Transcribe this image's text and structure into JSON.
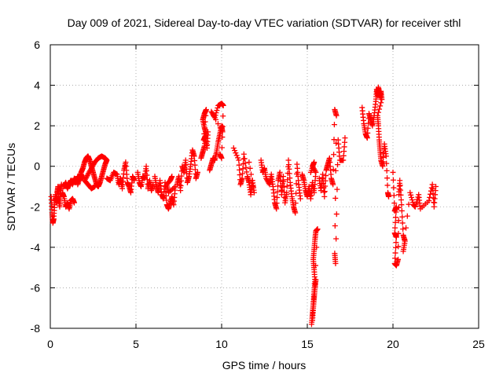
{
  "chart_data": {
    "type": "scatter",
    "title": "Day 009 of 2021, Sidereal Day-to-day VTEC variation (SDTVAR) for receiver sthl",
    "xlabel": "GPS time / hours",
    "ylabel": "SDTVAR / TECUs",
    "xlim": [
      0,
      25
    ],
    "ylim": [
      -8,
      6
    ],
    "x_ticks": [
      0,
      5,
      10,
      15,
      20,
      25
    ],
    "y_ticks": [
      -8,
      -6,
      -4,
      -2,
      0,
      2,
      4,
      6
    ],
    "grid": true,
    "marker": "+",
    "series": [
      {
        "name": "SDTVAR",
        "color": "#ff0000",
        "segments": [
          [
            [
              0.05,
              -1.5
            ],
            [
              0.1,
              -2.3
            ],
            [
              0.15,
              -2.8
            ],
            [
              0.2,
              -2.6
            ],
            [
              0.25,
              -1.9
            ],
            [
              0.3,
              -1.4
            ],
            [
              0.35,
              -1.8
            ],
            [
              0.4,
              -1.3
            ],
            [
              0.45,
              -1.0
            ],
            [
              0.5,
              -1.6
            ],
            [
              0.55,
              -2.0
            ],
            [
              0.6,
              -1.2
            ],
            [
              0.65,
              -0.9
            ]
          ],
          [
            [
              0.7,
              -1.3
            ],
            [
              0.8,
              -1.5
            ],
            [
              0.9,
              -2.0
            ],
            [
              1.0,
              -1.8
            ],
            [
              1.1,
              -2.1
            ],
            [
              1.2,
              -1.7
            ],
            [
              1.3,
              -1.6
            ],
            [
              1.4,
              -1.8
            ]
          ],
          [
            [
              0.8,
              -1.0
            ],
            [
              0.9,
              -0.8
            ],
            [
              1.0,
              -1.1
            ],
            [
              1.1,
              -0.9
            ],
            [
              1.2,
              -0.7
            ],
            [
              1.3,
              -0.9
            ],
            [
              1.4,
              -0.6
            ],
            [
              1.5,
              -0.8
            ],
            [
              1.6,
              -0.5
            ],
            [
              1.7,
              -0.7
            ],
            [
              1.8,
              -0.4
            ],
            [
              1.9,
              -0.6
            ]
          ],
          [
            [
              1.6,
              -0.9
            ],
            [
              1.7,
              -0.6
            ],
            [
              1.8,
              -0.3
            ],
            [
              1.9,
              -0.1
            ],
            [
              2.0,
              0.2
            ],
            [
              2.1,
              0.4
            ],
            [
              2.2,
              0.5
            ],
            [
              2.3,
              0.3
            ],
            [
              2.4,
              0.0
            ],
            [
              2.5,
              -0.3
            ],
            [
              2.6,
              -0.6
            ],
            [
              2.7,
              -0.9
            ],
            [
              2.8,
              -1.0
            ],
            [
              2.9,
              -0.8
            ],
            [
              3.0,
              -0.5
            ],
            [
              3.1,
              -0.2
            ],
            [
              3.2,
              0.1
            ],
            [
              3.3,
              0.3
            ],
            [
              3.2,
              0.4
            ],
            [
              3.0,
              0.5
            ],
            [
              2.8,
              0.4
            ],
            [
              2.6,
              0.2
            ],
            [
              2.4,
              -0.1
            ],
            [
              2.2,
              -0.4
            ],
            [
              2.0,
              -0.7
            ],
            [
              2.2,
              -0.9
            ],
            [
              2.4,
              -1.1
            ],
            [
              2.6,
              -1.0
            ]
          ],
          [
            [
              3.3,
              -0.6
            ],
            [
              3.5,
              -0.7
            ],
            [
              3.7,
              -0.3
            ],
            [
              3.9,
              -0.4
            ],
            [
              4.0,
              -0.9
            ],
            [
              4.1,
              -0.6
            ],
            [
              4.2,
              -1.1
            ],
            [
              4.3,
              -0.2
            ],
            [
              4.4,
              0.2
            ],
            [
              4.5,
              -0.8
            ],
            [
              4.6,
              -1.0
            ],
            [
              4.7,
              -1.3
            ],
            [
              4.8,
              -0.5
            ],
            [
              4.9,
              -0.7
            ]
          ],
          [
            [
              5.1,
              -0.3
            ],
            [
              5.2,
              -0.8
            ],
            [
              5.3,
              -1.0
            ],
            [
              5.4,
              -0.5
            ],
            [
              5.5,
              -0.6
            ],
            [
              5.6,
              0.0
            ],
            [
              5.7,
              -1.1
            ],
            [
              5.8,
              -0.7
            ],
            [
              5.9,
              -1.2
            ],
            [
              6.0,
              -0.9
            ]
          ],
          [
            [
              6.1,
              -0.5
            ],
            [
              6.2,
              -1.0
            ],
            [
              6.3,
              -1.3
            ],
            [
              6.4,
              -0.7
            ],
            [
              6.5,
              -1.4
            ],
            [
              6.6,
              -1.6
            ],
            [
              6.7,
              -0.8
            ],
            [
              6.8,
              -1.9
            ],
            [
              6.9,
              -2.1
            ],
            [
              7.0,
              -1.8
            ],
            [
              7.1,
              -1.5
            ],
            [
              7.2,
              -1.9
            ],
            [
              7.3,
              -1.0
            ],
            [
              6.9,
              -1.3
            ],
            [
              6.8,
              -0.9
            ],
            [
              7.0,
              -0.7
            ],
            [
              7.1,
              -0.5
            ]
          ],
          [
            [
              7.4,
              -0.9
            ],
            [
              7.5,
              -0.5
            ],
            [
              7.6,
              -1.2
            ],
            [
              7.7,
              0.0
            ],
            [
              7.8,
              -0.3
            ],
            [
              7.9,
              0.3
            ],
            [
              8.0,
              -0.8
            ],
            [
              8.1,
              -0.5
            ],
            [
              8.2,
              0.1
            ],
            [
              8.3,
              0.8
            ],
            [
              8.4,
              0.5
            ],
            [
              8.5,
              -0.6
            ],
            [
              8.6,
              -0.3
            ]
          ],
          [
            [
              8.8,
              0.4
            ],
            [
              8.9,
              0.7
            ],
            [
              9.0,
              1.0
            ],
            [
              9.1,
              1.6
            ],
            [
              9.0,
              1.9
            ],
            [
              8.9,
              2.3
            ],
            [
              9.0,
              2.6
            ],
            [
              9.1,
              2.8
            ],
            [
              8.95,
              1.3
            ],
            [
              9.05,
              1.5
            ],
            [
              9.15,
              0.9
            ],
            [
              9.2,
              1.7
            ]
          ],
          [
            [
              9.3,
              -0.2
            ],
            [
              9.4,
              0.1
            ],
            [
              9.5,
              0.4
            ],
            [
              9.6,
              0.3
            ],
            [
              9.7,
              0.7
            ],
            [
              9.8,
              1.2
            ],
            [
              9.9,
              1.6
            ],
            [
              10.0,
              2.0
            ],
            [
              10.05,
              1.7
            ],
            [
              9.4,
              2.7
            ],
            [
              9.6,
              2.4
            ],
            [
              9.8,
              3.0
            ],
            [
              10.0,
              3.1
            ],
            [
              10.1,
              3.0
            ],
            [
              10.0,
              0.4
            ],
            [
              9.9,
              0.6
            ]
          ],
          [
            [
              10.7,
              0.9
            ],
            [
              11.0,
              0.3
            ],
            [
              11.1,
              -0.9
            ],
            [
              11.2,
              -0.6
            ],
            [
              11.3,
              0.6
            ],
            [
              11.5,
              -0.5
            ],
            [
              11.6,
              -0.8
            ],
            [
              11.7,
              -1.4
            ],
            [
              11.8,
              -0.7
            ],
            [
              11.9,
              -1.3
            ],
            [
              11.6,
              0.2
            ]
          ],
          [
            [
              12.3,
              0.3
            ],
            [
              12.4,
              -0.3
            ],
            [
              12.5,
              -0.1
            ],
            [
              12.6,
              -0.6
            ],
            [
              12.8,
              -0.9
            ],
            [
              12.9,
              -0.4
            ],
            [
              13.0,
              -1.0
            ],
            [
              13.1,
              -1.8
            ],
            [
              13.2,
              -2.1
            ],
            [
              13.3,
              -0.7
            ],
            [
              13.4,
              -0.3
            ],
            [
              13.5,
              -1.4
            ],
            [
              13.6,
              -0.5
            ],
            [
              13.7,
              -1.8
            ],
            [
              13.8,
              -1.3
            ],
            [
              13.9,
              0.3
            ],
            [
              14.0,
              -0.8
            ],
            [
              14.1,
              -1.5
            ],
            [
              14.2,
              -2.0
            ],
            [
              14.3,
              -2.3
            ],
            [
              14.4,
              0.1
            ],
            [
              14.5,
              -0.9
            ],
            [
              14.6,
              -1.6
            ]
          ],
          [
            [
              14.7,
              -0.4
            ],
            [
              14.8,
              -0.7
            ],
            [
              14.9,
              -1.2
            ],
            [
              15.0,
              -1.5
            ],
            [
              15.1,
              -1.0
            ],
            [
              15.2,
              -1.6
            ],
            [
              15.3,
              -0.8
            ],
            [
              15.4,
              -1.3
            ],
            [
              15.5,
              -0.3
            ],
            [
              15.3,
              0.0
            ],
            [
              15.4,
              0.2
            ],
            [
              15.2,
              -0.3
            ]
          ],
          [
            [
              15.25,
              -7.8
            ],
            [
              15.3,
              -7.3
            ],
            [
              15.35,
              -6.8
            ],
            [
              15.4,
              -6.2
            ],
            [
              15.45,
              -5.7
            ],
            [
              15.4,
              -5.1
            ],
            [
              15.35,
              -4.6
            ],
            [
              15.4,
              -4.1
            ],
            [
              15.45,
              -3.6
            ],
            [
              15.5,
              -3.2
            ],
            [
              15.6,
              -3.1
            ],
            [
              15.3,
              -7.6
            ],
            [
              15.35,
              -7.0
            ],
            [
              15.4,
              -6.5
            ],
            [
              15.45,
              -6.0
            ],
            [
              15.5,
              -5.6
            ]
          ],
          [
            [
              15.7,
              -0.6
            ],
            [
              15.8,
              -1.2
            ],
            [
              15.9,
              -0.4
            ],
            [
              16.0,
              -1.5
            ],
            [
              16.1,
              -0.2
            ],
            [
              16.2,
              0.1
            ],
            [
              16.3,
              0.4
            ],
            [
              16.4,
              -0.6
            ],
            [
              16.5,
              -0.9
            ],
            [
              16.6,
              2.8
            ],
            [
              16.7,
              2.5
            ],
            [
              16.6,
              -4.3
            ],
            [
              16.65,
              -4.8
            ],
            [
              16.8,
              1.3
            ],
            [
              16.9,
              0.3
            ],
            [
              17.1,
              0.3
            ],
            [
              17.2,
              1.4
            ]
          ],
          [
            [
              18.2,
              2.9
            ],
            [
              18.3,
              2.1
            ],
            [
              18.4,
              1.6
            ],
            [
              18.5,
              1.4
            ],
            [
              18.6,
              2.6
            ],
            [
              18.7,
              2.3
            ],
            [
              18.8,
              2.0
            ],
            [
              18.9,
              2.5
            ],
            [
              19.0,
              3.2
            ],
            [
              19.05,
              3.8
            ],
            [
              19.1,
              3.5
            ],
            [
              19.15,
              3.9
            ],
            [
              19.2,
              3.6
            ],
            [
              19.25,
              3.4
            ],
            [
              19.3,
              3.7
            ],
            [
              19.35,
              3.3
            ],
            [
              19.1,
              2.5
            ],
            [
              19.15,
              2.0
            ],
            [
              19.2,
              1.3
            ],
            [
              19.25,
              0.8
            ],
            [
              19.3,
              0.3
            ],
            [
              19.4,
              0.0
            ],
            [
              19.5,
              1.1
            ],
            [
              19.6,
              0.5
            ],
            [
              19.7,
              -1.3
            ],
            [
              19.75,
              -1.5
            ]
          ],
          [
            [
              20.0,
              -0.3
            ],
            [
              20.1,
              -2.2
            ],
            [
              20.2,
              -2.0
            ],
            [
              20.1,
              -3.3
            ],
            [
              20.2,
              -3.5
            ],
            [
              20.1,
              -4.8
            ],
            [
              20.2,
              -4.9
            ],
            [
              20.3,
              -4.6
            ],
            [
              20.35,
              -1.4
            ],
            [
              20.4,
              -0.7
            ],
            [
              20.5,
              -1.9
            ],
            [
              20.6,
              -3.4
            ],
            [
              20.7,
              -3.7
            ],
            [
              20.6,
              -4.2
            ],
            [
              21.0,
              -1.3
            ],
            [
              21.2,
              -1.9
            ],
            [
              21.3,
              -2.0
            ],
            [
              21.5,
              -1.4
            ],
            [
              21.6,
              -2.1
            ],
            [
              22.1,
              -1.7
            ],
            [
              22.3,
              -0.9
            ],
            [
              22.4,
              -2.0
            ],
            [
              22.5,
              -1.0
            ]
          ]
        ]
      }
    ]
  }
}
